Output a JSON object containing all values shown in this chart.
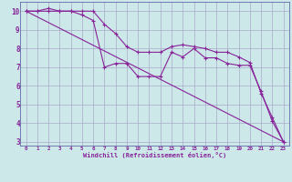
{
  "background_color": "#cce8e8",
  "grid_color": "#aaaacc",
  "line_color": "#882299",
  "spine_color": "#6666aa",
  "xlim": [
    -0.5,
    23.5
  ],
  "ylim": [
    2.8,
    10.5
  ],
  "yticks": [
    3,
    4,
    5,
    6,
    7,
    8,
    9,
    10
  ],
  "xticks": [
    0,
    1,
    2,
    3,
    4,
    5,
    6,
    7,
    8,
    9,
    10,
    11,
    12,
    13,
    14,
    15,
    16,
    17,
    18,
    19,
    20,
    21,
    22,
    23
  ],
  "xlabel": "Windchill (Refroidissement éolien,°C)",
  "line_straight": {
    "x": [
      0,
      23
    ],
    "y": [
      10,
      3.0
    ]
  },
  "line_upper": {
    "x": [
      0,
      1,
      2,
      3,
      4,
      5,
      6,
      7,
      8,
      9,
      10,
      11,
      12,
      13,
      14,
      15,
      16,
      17,
      18,
      19,
      20,
      21,
      22,
      23
    ],
    "y": [
      10,
      10,
      10.15,
      10,
      10,
      10,
      10,
      9.3,
      8.8,
      8.1,
      7.8,
      7.8,
      7.8,
      8.1,
      8.2,
      8.1,
      8.0,
      7.8,
      7.8,
      7.55,
      7.25,
      5.6,
      4.3,
      3.0
    ]
  },
  "line_lower": {
    "x": [
      0,
      1,
      2,
      3,
      4,
      5,
      6,
      7,
      8,
      9,
      10,
      11,
      12,
      13,
      14,
      15,
      16,
      17,
      18,
      19,
      20,
      21,
      22,
      23
    ],
    "y": [
      10,
      10,
      10,
      10,
      10,
      9.8,
      9.5,
      7.0,
      7.2,
      7.2,
      6.5,
      6.5,
      6.5,
      7.8,
      7.55,
      8.0,
      7.5,
      7.5,
      7.2,
      7.1,
      7.1,
      5.7,
      4.1,
      3.0
    ]
  }
}
